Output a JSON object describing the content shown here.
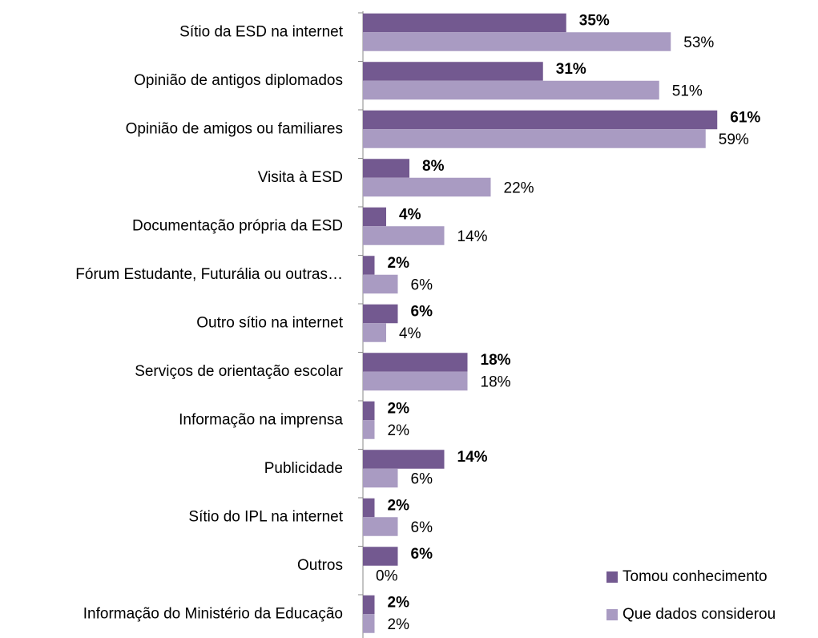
{
  "chart_data": {
    "type": "barh",
    "categories": [
      "Sítio da ESD na internet",
      "Opinião de antigos diplomados",
      "Opinião de amigos ou familiares",
      "Visita à ESD",
      "Documentação própria da ESD",
      "Fórum Estudante, Futurália ou outras…",
      "Outro sítio na internet",
      "Serviços de orientação escolar",
      "Informação na imprensa",
      "Publicidade",
      "Sítio do IPL na internet",
      "Outros",
      "Informação do Ministério da Educação"
    ],
    "series": [
      {
        "name": "Tomou conhecimento",
        "color": "#735990",
        "values": [
          35,
          31,
          61,
          8,
          4,
          2,
          6,
          18,
          2,
          14,
          2,
          6,
          2
        ],
        "value_labels": [
          "35%",
          "31%",
          "61%",
          "8%",
          "4%",
          "2%",
          "6%",
          "18%",
          "2%",
          "14%",
          "2%",
          "6%",
          "2%"
        ]
      },
      {
        "name": "Que dados considerou",
        "color": "#a99bc2",
        "values": [
          53,
          51,
          59,
          22,
          14,
          6,
          4,
          18,
          2,
          6,
          6,
          0,
          2
        ],
        "value_labels": [
          "53%",
          "51%",
          "59%",
          "22%",
          "14%",
          "6%",
          "4%",
          "18%",
          "2%",
          "6%",
          "6%",
          "0%",
          "2%"
        ]
      }
    ],
    "xlim": [
      0,
      70
    ],
    "legend": "lower right"
  }
}
